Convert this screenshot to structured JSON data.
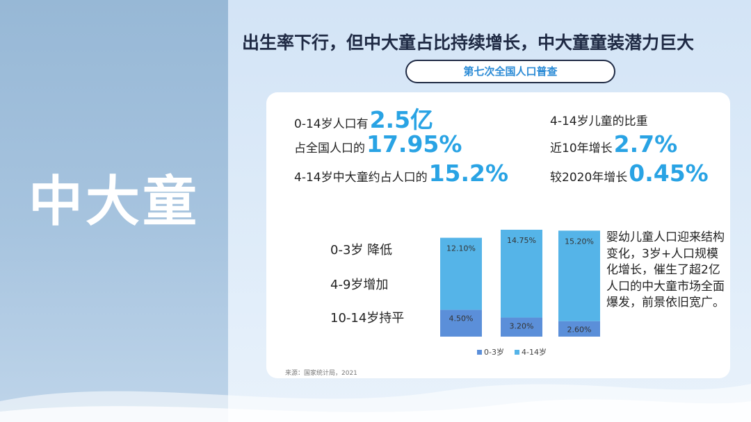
{
  "left_title": "中大童",
  "headline": "出生率下行，但中大童占比持续增长，中大童童装潜力巨大",
  "pill_label": "第七次全国人口普查",
  "stats": {
    "s1": {
      "text": "0-14岁人口有",
      "value": "2.5亿"
    },
    "s2": {
      "text": "占全国人口的",
      "value": "17.95%"
    },
    "s3": {
      "text": "4-14岁中大童约占人口的",
      "value": "15.2%"
    },
    "s4": {
      "text": "4-14岁儿童的比重"
    },
    "s5": {
      "text": "近10年增长",
      "value": "2.7%"
    },
    "s6": {
      "text": "较2020年增长",
      "value": "0.45%"
    }
  },
  "age_labels": [
    "0-3岁 降低",
    "4-9岁增加",
    "10-14岁持平"
  ],
  "description": "婴幼儿童人口迎来结构变化，3岁+人口规模化增长，催生了超2亿人口的中大童市场全面爆发，前景依旧宽广。",
  "source": "来源：国家统计局，2021",
  "colors": {
    "bottom_series": "#5b8fd9",
    "top_series": "#55b4e8",
    "accent": "#29a3e4"
  },
  "chart_data": {
    "type": "bar",
    "stacked": true,
    "categories": [
      "",
      "",
      ""
    ],
    "series": [
      {
        "name": "0-3岁",
        "values": [
          4.5,
          3.2,
          2.6
        ],
        "labels": [
          "4.50%",
          "3.20%",
          "2.60%"
        ]
      },
      {
        "name": "4-14岁",
        "values": [
          12.1,
          14.75,
          15.2
        ],
        "labels": [
          "12.10%",
          "14.75%",
          "15.20%"
        ]
      }
    ],
    "legend_position": "bottom",
    "grid": false
  }
}
